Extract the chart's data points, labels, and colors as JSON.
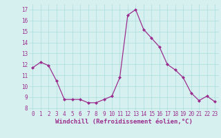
{
  "x": [
    0,
    1,
    2,
    3,
    4,
    5,
    6,
    7,
    8,
    9,
    10,
    11,
    12,
    13,
    14,
    15,
    16,
    17,
    18,
    19,
    20,
    21,
    22,
    23
  ],
  "y": [
    11.7,
    12.2,
    11.9,
    10.5,
    8.8,
    8.8,
    8.8,
    8.5,
    8.5,
    8.8,
    9.1,
    10.8,
    16.5,
    17.0,
    15.2,
    14.4,
    13.6,
    12.0,
    11.5,
    10.8,
    9.4,
    8.7,
    9.1,
    8.6
  ],
  "line_color": "#9B2D8E",
  "marker": "D",
  "marker_size": 2.0,
  "bg_color": "#D6F0F0",
  "grid_color": "#AADDDD",
  "xlabel": "Windchill (Refroidissement éolien,°C)",
  "xlabel_color": "#9B2D8E",
  "xlabel_fontsize": 6.5,
  "ylabel_ticks": [
    8,
    9,
    10,
    11,
    12,
    13,
    14,
    15,
    16,
    17
  ],
  "xtick_labels": [
    "0",
    "1",
    "2",
    "3",
    "4",
    "5",
    "6",
    "7",
    "8",
    "9",
    "10",
    "11",
    "12",
    "13",
    "14",
    "15",
    "16",
    "17",
    "18",
    "19",
    "20",
    "21",
    "22",
    "23"
  ],
  "ylim": [
    7.8,
    17.5
  ],
  "xlim": [
    -0.5,
    23.5
  ],
  "tick_fontsize": 5.5,
  "tick_color": "#9B2D8E"
}
